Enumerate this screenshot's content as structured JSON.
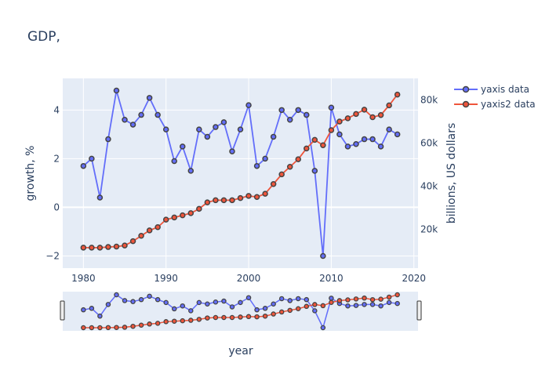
{
  "chart_data": {
    "type": "line",
    "title": "GDP,",
    "xlabel": "year",
    "ylabel": "growth, %",
    "y2label": "billions, US dollars",
    "xlim": [
      1977.5,
      2020.5
    ],
    "ylim": [
      -2.5,
      5.3
    ],
    "y2lim": [
      2000,
      90000
    ],
    "x_ticks": [
      1980,
      1990,
      2000,
      2010,
      2020
    ],
    "y_ticks": [
      -2,
      0,
      2,
      4
    ],
    "y2_ticks": [
      20000,
      40000,
      60000,
      80000
    ],
    "y2_tick_labels": [
      "20k",
      "40k",
      "60k",
      "80k"
    ],
    "legend_position": "top-right",
    "range_slider": true,
    "x": [
      1980,
      1981,
      1982,
      1983,
      1984,
      1985,
      1986,
      1987,
      1988,
      1989,
      1990,
      1991,
      1992,
      1993,
      1994,
      1995,
      1996,
      1997,
      1998,
      1999,
      2000,
      2001,
      2002,
      2003,
      2004,
      2005,
      2006,
      2007,
      2008,
      2009,
      2010,
      2011,
      2012,
      2013,
      2014,
      2015,
      2016,
      2017,
      2018
    ],
    "series": [
      {
        "name": "yaxis data",
        "axis": "y",
        "color": "#636efa",
        "values": [
          1.7,
          2.0,
          0.4,
          2.8,
          4.8,
          3.6,
          3.4,
          3.8,
          4.5,
          3.8,
          3.2,
          1.9,
          2.5,
          1.5,
          3.2,
          2.9,
          3.3,
          3.5,
          2.3,
          3.2,
          4.2,
          1.7,
          2.0,
          2.9,
          4.0,
          3.6,
          4.0,
          3.8,
          1.5,
          -2.0,
          4.1,
          3.0,
          2.5,
          2.6,
          2.8,
          2.8,
          2.5,
          3.2,
          3.0
        ]
      },
      {
        "name": "yaxis2 data",
        "axis": "y2",
        "color": "#ef553b",
        "values": [
          11500,
          11500,
          11500,
          11800,
          12000,
          12500,
          14500,
          17000,
          19500,
          21000,
          24500,
          25500,
          26500,
          27500,
          29500,
          32500,
          33500,
          33500,
          33500,
          34500,
          35500,
          35000,
          36500,
          41000,
          45500,
          49000,
          52500,
          57500,
          61500,
          59000,
          66000,
          70000,
          71500,
          73500,
          75500,
          72000,
          73000,
          77500,
          82500
        ]
      }
    ]
  },
  "ui": {
    "title_text": "GDP,"
  }
}
